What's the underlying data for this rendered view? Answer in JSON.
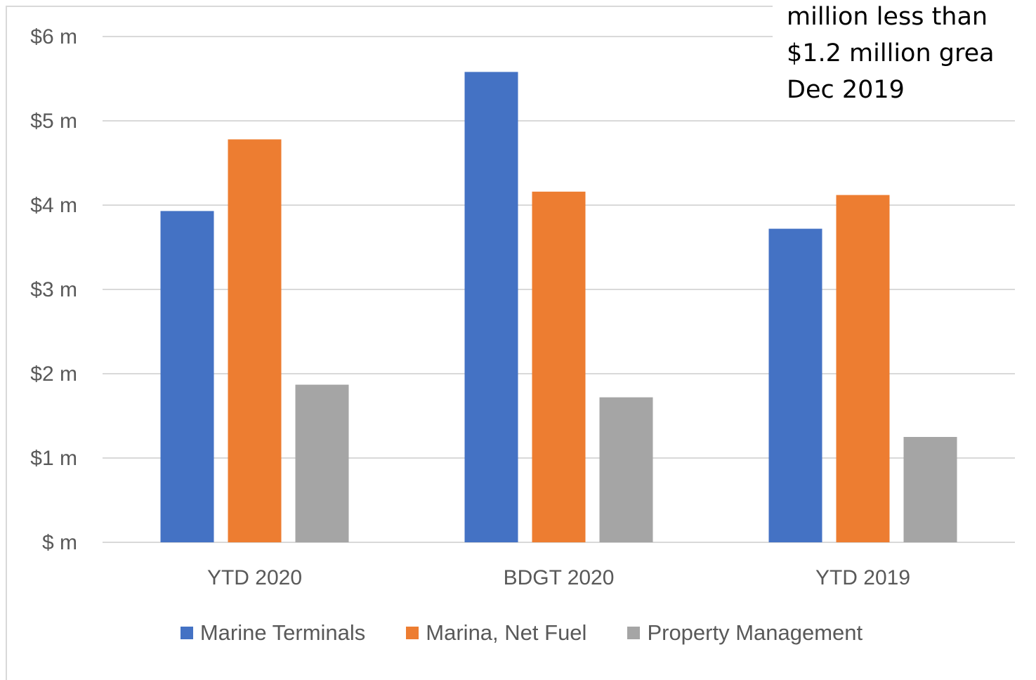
{
  "note": {
    "lines": [
      "million less than",
      "$1.2 million grea",
      "Dec 2019"
    ]
  },
  "chart_data": {
    "type": "bar",
    "categories": [
      "YTD 2020",
      "BDGT 2020",
      "YTD 2019"
    ],
    "series": [
      {
        "name": "Marine Terminals",
        "values": [
          3.93,
          5.58,
          3.72
        ],
        "color": "#4472c4"
      },
      {
        "name": "Marina, Net Fuel",
        "values": [
          4.78,
          4.16,
          4.12
        ],
        "color": "#ed7d31"
      },
      {
        "name": "Property Management",
        "values": [
          1.87,
          1.72,
          1.25
        ],
        "color": "#a5a5a5"
      }
    ],
    "yticks": [
      {
        "value": 0,
        "label": "$ m"
      },
      {
        "value": 1,
        "label": "$1 m"
      },
      {
        "value": 2,
        "label": "$2 m"
      },
      {
        "value": 3,
        "label": "$3 m"
      },
      {
        "value": 4,
        "label": "$4 m"
      },
      {
        "value": 5,
        "label": "$5 m"
      },
      {
        "value": 6,
        "label": "$6 m"
      }
    ],
    "ylim": [
      0,
      6
    ],
    "grid": true,
    "legend_position": "bottom",
    "colors": {
      "gridline": "#d9d9d9",
      "axis_text": "#595959"
    }
  }
}
